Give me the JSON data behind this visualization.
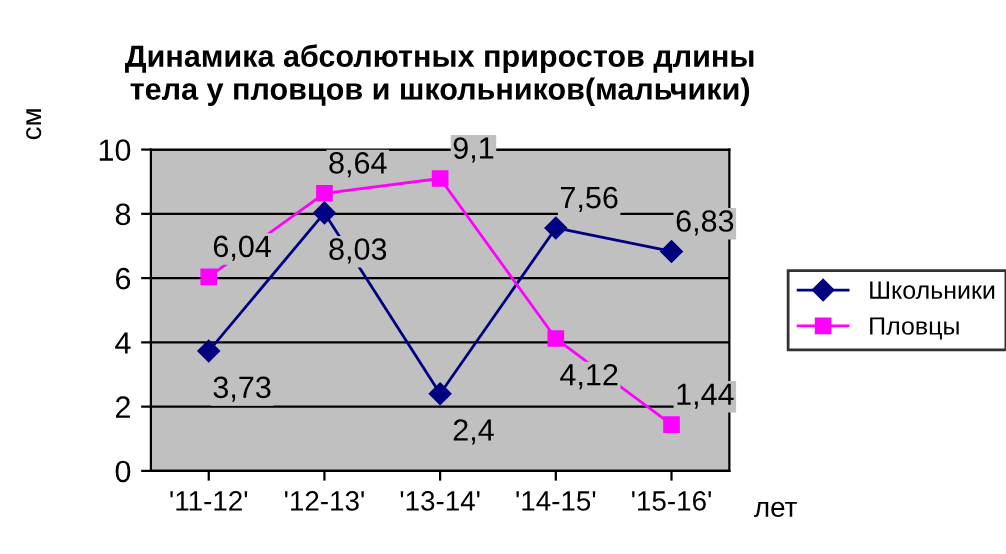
{
  "chart_data": {
    "type": "line",
    "title": "Динамика абсолютных приростов длины\nтела у пловцов и школьников(мальчики)",
    "ylabel": "см",
    "xlabel": "лет",
    "categories": [
      "'11-12'",
      "'12-13'",
      "'13-14'",
      "'14-15'",
      "'15-16'"
    ],
    "series": [
      {
        "name": "Школьники",
        "color": "#000080",
        "marker": "diamond",
        "values": [
          3.73,
          8.03,
          2.4,
          7.56,
          6.83
        ],
        "value_labels": [
          "3,73",
          "8,03",
          "2,4",
          "7,56",
          "6,83"
        ]
      },
      {
        "name": "Пловцы",
        "color": "#ff00ff",
        "marker": "square",
        "values": [
          6.04,
          8.64,
          9.1,
          4.12,
          1.44
        ],
        "value_labels": [
          "6,04",
          "8,64",
          "9,1",
          "4,12",
          "1,44"
        ]
      }
    ],
    "ylim": [
      0,
      10
    ],
    "yticks": [
      0,
      2,
      4,
      6,
      8,
      10
    ],
    "grid": "y",
    "legend": "right"
  }
}
